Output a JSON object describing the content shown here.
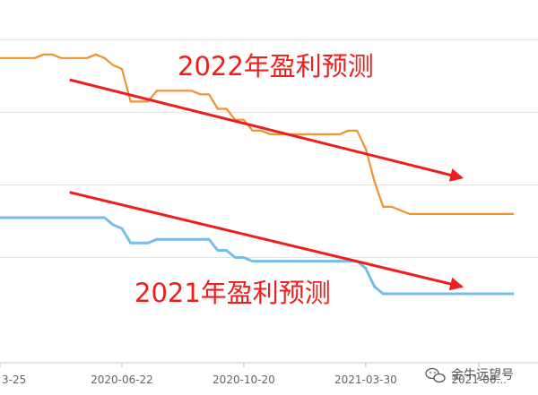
{
  "chart_data": {
    "type": "line",
    "x": [
      0,
      1,
      2,
      3,
      4,
      5,
      6,
      7,
      8,
      9,
      10,
      11,
      12,
      13,
      14,
      15,
      16,
      17,
      18,
      19,
      20,
      21,
      22,
      23,
      24,
      25,
      26,
      27,
      28,
      29,
      30,
      31,
      32,
      33,
      34,
      35,
      36,
      37,
      38,
      39,
      40,
      41,
      42,
      43,
      44,
      45,
      46,
      47,
      48,
      49,
      50,
      51,
      52,
      53,
      54,
      55,
      56,
      57,
      58,
      59
    ],
    "x_tick_labels": [
      {
        "x": 0,
        "label": "3-25"
      },
      {
        "x": 14,
        "label": "2020-06-22"
      },
      {
        "x": 28,
        "label": "2020-10-20"
      },
      {
        "x": 42,
        "label": "2021-03-30"
      },
      {
        "x": 55,
        "label": "2021-06..."
      }
    ],
    "series": [
      {
        "name": "",
        "color": "#f0922e",
        "values": [
          7.3,
          7.3,
          7.3,
          7.3,
          7.3,
          7.31,
          7.31,
          7.3,
          7.3,
          7.3,
          7.3,
          7.31,
          7.3,
          7.28,
          7.27,
          7.18,
          7.18,
          7.18,
          7.21,
          7.21,
          7.21,
          7.21,
          7.21,
          7.2,
          7.2,
          7.16,
          7.16,
          7.13,
          7.13,
          7.1,
          7.1,
          7.09,
          7.09,
          7.09,
          7.09,
          7.09,
          7.09,
          7.09,
          7.09,
          7.09,
          7.1,
          7.1,
          7.05,
          6.96,
          6.89,
          6.89,
          6.88,
          6.87,
          6.87,
          6.87,
          6.87,
          6.87,
          6.87,
          6.87,
          6.87,
          6.87,
          6.87,
          6.87,
          6.87,
          6.87
        ]
      },
      {
        "name": "",
        "color": "#76bdea",
        "values": [
          6.86,
          6.86,
          6.86,
          6.86,
          6.86,
          6.86,
          6.86,
          6.86,
          6.86,
          6.86,
          6.86,
          6.86,
          6.86,
          6.84,
          6.83,
          6.79,
          6.79,
          6.79,
          6.8,
          6.8,
          6.8,
          6.8,
          6.8,
          6.8,
          6.8,
          6.77,
          6.77,
          6.75,
          6.75,
          6.74,
          6.74,
          6.74,
          6.74,
          6.74,
          6.74,
          6.74,
          6.74,
          6.74,
          6.74,
          6.74,
          6.74,
          6.74,
          6.72,
          6.67,
          6.65,
          6.65,
          6.65,
          6.65,
          6.65,
          6.65,
          6.65,
          6.65,
          6.65,
          6.65,
          6.65,
          6.65,
          6.65,
          6.65,
          6.65,
          6.65
        ]
      }
    ],
    "ylim": [
      6.46,
      7.46
    ],
    "grid": true,
    "gridline_values": [
      7.35,
      7.15,
      6.95,
      6.75
    ],
    "annotations": [
      {
        "id": "ann-2022",
        "text": "2022年盈利预测",
        "color": "#f01d1d"
      },
      {
        "id": "ann-2021",
        "text": "2021年盈利预测",
        "color": "#f01d1d"
      }
    ],
    "arrows": [
      {
        "from": [
          8,
          7.24
        ],
        "to": [
          53,
          6.97
        ],
        "color": "#f01d1d"
      },
      {
        "from": [
          8,
          6.93
        ],
        "to": [
          53,
          6.67
        ],
        "color": "#f01d1d"
      }
    ]
  },
  "watermark": {
    "text": "金牛远望号",
    "icon": "wechat-icon"
  }
}
